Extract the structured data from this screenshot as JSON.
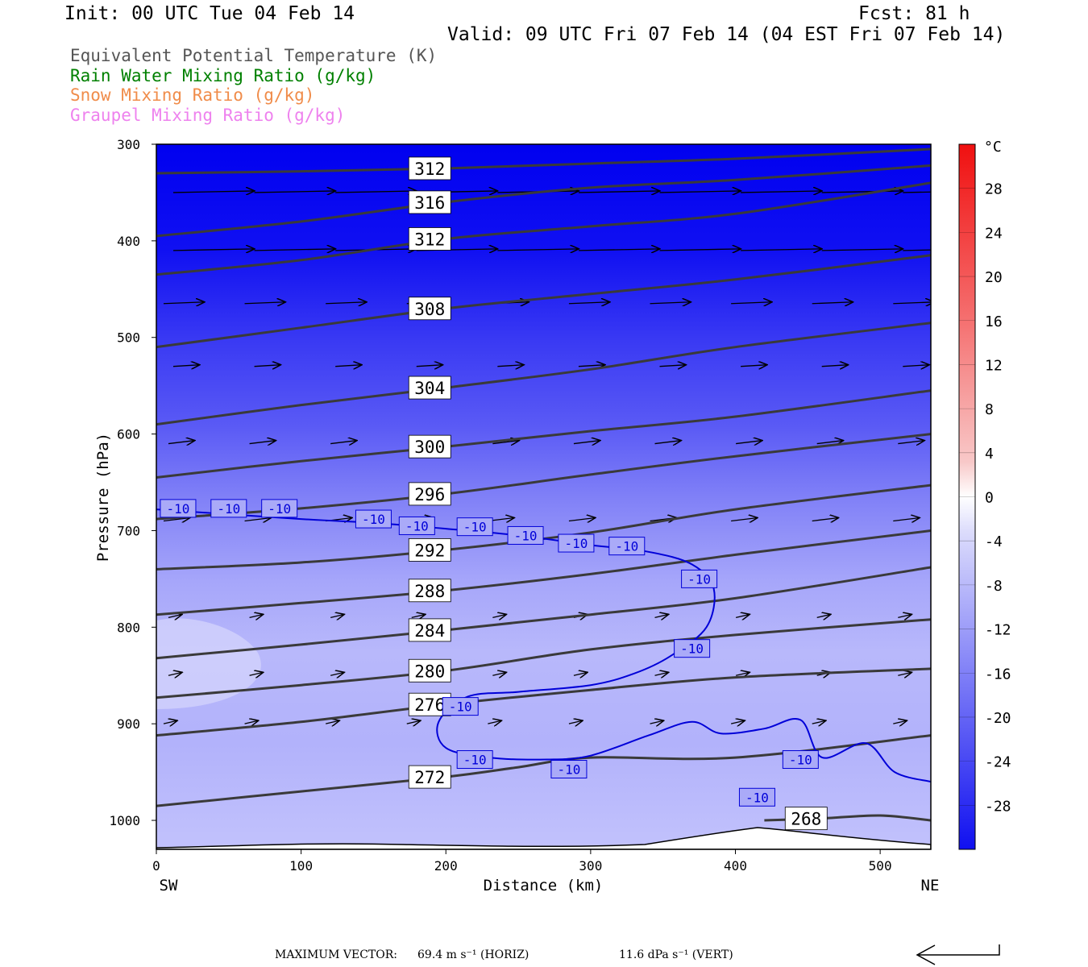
{
  "header": {
    "init": "Init: 00 UTC Tue 04 Feb 14",
    "fcst": "Fcst:   81 h",
    "valid": "Valid: 09 UTC Fri 07 Feb 14 (04 EST Fri 07 Feb 14)"
  },
  "legend": [
    {
      "text": "Equivalent Potential Temperature (K)",
      "color": "#555555"
    },
    {
      "text": "Rain Water Mixing Ratio (g/kg)",
      "color": "#008000"
    },
    {
      "text": "Snow Mixing Ratio (g/kg)",
      "color": "#f08c4a"
    },
    {
      "text": "Graupel Mixing Ratio (g/kg)",
      "color": "#ee82ee"
    }
  ],
  "footer": {
    "label": "MAXIMUM VECTOR:",
    "horiz": "69.4 m s⁻¹ (HORIZ)",
    "vert": "11.6 dPa s⁻¹ (VERT)"
  },
  "chart_data": {
    "type": "heatmap",
    "xlabel": "Distance (km)",
    "ylabel": "Pressure (hPa)",
    "xlim": [
      0,
      535
    ],
    "ylim": [
      1030,
      300
    ],
    "x_ticks": [
      0,
      100,
      200,
      300,
      400,
      500
    ],
    "y_ticks": [
      300,
      400,
      500,
      600,
      700,
      800,
      900,
      1000
    ],
    "x_end_labels": {
      "left": "SW",
      "right": "NE"
    },
    "colorbar": {
      "unit": "°C",
      "tick_labels": [
        "28",
        "24",
        "20",
        "16",
        "12",
        "8",
        "4",
        "0",
        "-4",
        "-8",
        "-12",
        "-16",
        "-20",
        "-24",
        "-28"
      ],
      "range": [
        -32,
        32
      ]
    },
    "temperature_field": {
      "pressure": [
        300,
        400,
        500,
        600,
        700,
        800,
        900,
        1000,
        1030
      ],
      "value_c": [
        -32,
        -30,
        -25,
        -20,
        -14,
        -8,
        -10,
        -9,
        -8
      ]
    },
    "theta_e_contours": [
      {
        "label": "316",
        "points": [
          [
            0,
            395
          ],
          [
            100,
            380
          ],
          [
            200,
            360
          ],
          [
            300,
            345
          ],
          [
            400,
            337
          ],
          [
            535,
            322
          ]
        ]
      },
      {
        "label": "312",
        "points": [
          [
            0,
            435
          ],
          [
            100,
            420
          ],
          [
            200,
            398
          ],
          [
            300,
            385
          ],
          [
            400,
            372
          ],
          [
            535,
            340
          ]
        ]
      },
      {
        "label": "312",
        "points": [
          [
            0,
            330
          ],
          [
            100,
            328
          ],
          [
            200,
            325
          ],
          [
            300,
            320
          ],
          [
            400,
            315
          ],
          [
            535,
            305
          ]
        ]
      },
      {
        "label": "308",
        "points": [
          [
            0,
            510
          ],
          [
            100,
            490
          ],
          [
            200,
            470
          ],
          [
            300,
            455
          ],
          [
            400,
            440
          ],
          [
            535,
            415
          ]
        ]
      },
      {
        "label": "304",
        "points": [
          [
            0,
            590
          ],
          [
            100,
            570
          ],
          [
            200,
            552
          ],
          [
            300,
            533
          ],
          [
            400,
            510
          ],
          [
            535,
            485
          ]
        ]
      },
      {
        "label": "300",
        "points": [
          [
            0,
            645
          ],
          [
            100,
            628
          ],
          [
            200,
            613
          ],
          [
            300,
            597
          ],
          [
            400,
            582
          ],
          [
            535,
            555
          ]
        ]
      },
      {
        "label": "296",
        "points": [
          [
            0,
            688
          ],
          [
            100,
            677
          ],
          [
            200,
            662
          ],
          [
            300,
            642
          ],
          [
            400,
            623
          ],
          [
            535,
            600
          ]
        ]
      },
      {
        "label": "292",
        "points": [
          [
            0,
            740
          ],
          [
            100,
            733
          ],
          [
            200,
            720
          ],
          [
            300,
            702
          ],
          [
            400,
            678
          ],
          [
            535,
            653
          ]
        ]
      },
      {
        "label": "288",
        "points": [
          [
            0,
            787
          ],
          [
            100,
            775
          ],
          [
            200,
            762
          ],
          [
            300,
            745
          ],
          [
            400,
            725
          ],
          [
            535,
            700
          ]
        ]
      },
      {
        "label": "284",
        "points": [
          [
            0,
            832
          ],
          [
            100,
            818
          ],
          [
            200,
            803
          ],
          [
            300,
            787
          ],
          [
            400,
            770
          ],
          [
            535,
            738
          ]
        ]
      },
      {
        "label": "280",
        "points": [
          [
            0,
            873
          ],
          [
            100,
            860
          ],
          [
            200,
            845
          ],
          [
            300,
            823
          ],
          [
            400,
            808
          ],
          [
            535,
            792
          ]
        ]
      },
      {
        "label": "276",
        "points": [
          [
            0,
            912
          ],
          [
            100,
            898
          ],
          [
            200,
            880
          ],
          [
            300,
            865
          ],
          [
            400,
            852
          ],
          [
            535,
            843
          ]
        ]
      },
      {
        "label": "272",
        "points": [
          [
            0,
            985
          ],
          [
            100,
            970
          ],
          [
            200,
            955
          ],
          [
            250,
            945
          ],
          [
            300,
            935
          ],
          [
            400,
            935
          ],
          [
            535,
            912
          ]
        ]
      },
      {
        "label": "268",
        "points": [
          [
            420,
            1000
          ],
          [
            460,
            998
          ],
          [
            500,
            995
          ],
          [
            535,
            1000
          ]
        ]
      }
    ],
    "minus10_isotherm": {
      "label": "-10",
      "points": [
        [
          0,
          678
        ],
        [
          100,
          688
        ],
        [
          150,
          692
        ],
        [
          200,
          698
        ],
        [
          250,
          705
        ],
        [
          300,
          715
        ],
        [
          340,
          722
        ],
        [
          370,
          735
        ],
        [
          385,
          760
        ],
        [
          380,
          800
        ],
        [
          355,
          830
        ],
        [
          330,
          848
        ],
        [
          300,
          860
        ],
        [
          250,
          867
        ],
        [
          215,
          872
        ],
        [
          195,
          898
        ],
        [
          200,
          925
        ],
        [
          230,
          935
        ],
        [
          270,
          937
        ],
        [
          300,
          933
        ],
        [
          340,
          912
        ],
        [
          370,
          898
        ],
        [
          390,
          910
        ],
        [
          420,
          905
        ],
        [
          445,
          896
        ],
        [
          460,
          935
        ],
        [
          490,
          920
        ],
        [
          510,
          950
        ],
        [
          535,
          960
        ]
      ]
    },
    "contour_labels_minus10": [
      [
        15,
        677
      ],
      [
        50,
        677
      ],
      [
        85,
        677
      ],
      [
        150,
        688
      ],
      [
        180,
        695
      ],
      [
        220,
        696
      ],
      [
        255,
        705
      ],
      [
        290,
        713
      ],
      [
        325,
        716
      ],
      [
        375,
        750
      ],
      [
        370,
        822
      ],
      [
        210,
        882
      ],
      [
        220,
        937
      ],
      [
        285,
        947
      ],
      [
        445,
        937
      ],
      [
        415,
        976
      ]
    ],
    "wind_vectors_note": "Horizontal wind arrows pointing NE, stronger aloft"
  }
}
